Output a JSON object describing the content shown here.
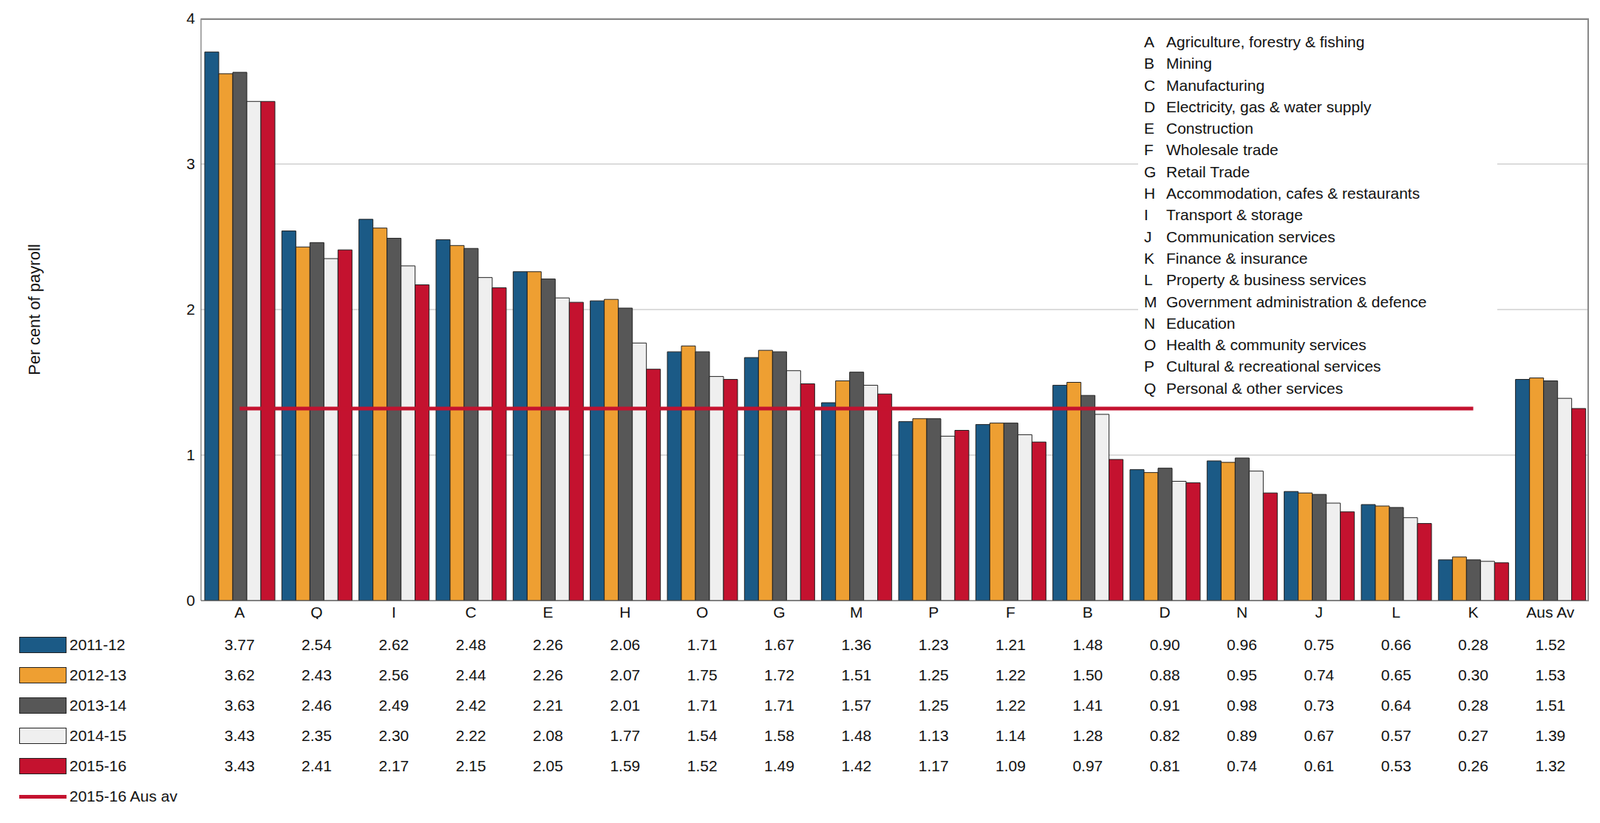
{
  "chart_data": {
    "type": "bar",
    "y_label": "Per cent of payroll",
    "categories": [
      "A",
      "Q",
      "I",
      "C",
      "E",
      "H",
      "O",
      "G",
      "M",
      "P",
      "F",
      "B",
      "D",
      "N",
      "J",
      "L",
      "K",
      "Aus Av"
    ],
    "series": [
      {
        "name": "2011-12",
        "color": "#1b5a86",
        "values": [
          3.77,
          2.54,
          2.62,
          2.48,
          2.26,
          2.06,
          1.71,
          1.67,
          1.36,
          1.23,
          1.21,
          1.48,
          0.9,
          0.96,
          0.75,
          0.66,
          0.28,
          1.52
        ],
        "value_labels": [
          "3.77",
          "2.54",
          "2.62",
          "2.48",
          "2.26",
          "2.06",
          "1.71",
          "1.67",
          "1.36",
          "1.23",
          "1.21",
          "1.48",
          "0.90",
          "0.96",
          "0.75",
          "0.66",
          "0.28",
          "1.52"
        ]
      },
      {
        "name": "2012-13",
        "color": "#ee9f32",
        "values": [
          3.62,
          2.43,
          2.56,
          2.44,
          2.26,
          2.07,
          1.75,
          1.72,
          1.51,
          1.25,
          1.22,
          1.5,
          0.88,
          0.95,
          0.74,
          0.65,
          0.3,
          1.53
        ],
        "value_labels": [
          "3.62",
          "2.43",
          "2.56",
          "2.44",
          "2.26",
          "2.07",
          "1.75",
          "1.72",
          "1.51",
          "1.25",
          "1.22",
          "1.50",
          "0.88",
          "0.95",
          "0.74",
          "0.65",
          "0.30",
          "1.53"
        ]
      },
      {
        "name": "2013-14",
        "color": "#575757",
        "values": [
          3.63,
          2.46,
          2.49,
          2.42,
          2.21,
          2.01,
          1.71,
          1.71,
          1.57,
          1.25,
          1.22,
          1.41,
          0.91,
          0.98,
          0.73,
          0.64,
          0.28,
          1.51
        ],
        "value_labels": [
          "3.63",
          "2.46",
          "2.49",
          "2.42",
          "2.21",
          "2.01",
          "1.71",
          "1.71",
          "1.57",
          "1.25",
          "1.22",
          "1.41",
          "0.91",
          "0.98",
          "0.73",
          "0.64",
          "0.28",
          "1.51"
        ]
      },
      {
        "name": "2014-15",
        "color": "#efefef",
        "values": [
          3.43,
          2.35,
          2.3,
          2.22,
          2.08,
          1.77,
          1.54,
          1.58,
          1.48,
          1.13,
          1.14,
          1.28,
          0.82,
          0.89,
          0.67,
          0.57,
          0.27,
          1.39
        ],
        "value_labels": [
          "3.43",
          "2.35",
          "2.30",
          "2.22",
          "2.08",
          "1.77",
          "1.54",
          "1.58",
          "1.48",
          "1.13",
          "1.14",
          "1.28",
          "0.82",
          "0.89",
          "0.67",
          "0.57",
          "0.27",
          "1.39"
        ]
      },
      {
        "name": "2015-16",
        "color": "#c4122f",
        "values": [
          3.43,
          2.41,
          2.17,
          2.15,
          2.05,
          1.59,
          1.52,
          1.49,
          1.42,
          1.17,
          1.09,
          0.97,
          0.81,
          0.74,
          0.61,
          0.53,
          0.26,
          1.32
        ],
        "value_labels": [
          "3.43",
          "2.41",
          "2.17",
          "2.15",
          "2.05",
          "1.59",
          "1.52",
          "1.49",
          "1.42",
          "1.17",
          "1.09",
          "0.97",
          "0.81",
          "0.74",
          "0.61",
          "0.53",
          "0.26",
          "1.32"
        ]
      }
    ],
    "reference_line": {
      "value": 1.32,
      "label": "2015-16 Aus av",
      "color": "#c4122f"
    },
    "category_key": [
      {
        "code": "A",
        "name": "Agriculture, forestry & fishing"
      },
      {
        "code": "B",
        "name": "Mining"
      },
      {
        "code": "C",
        "name": "Manufacturing"
      },
      {
        "code": "D",
        "name": "Electricity, gas & water supply"
      },
      {
        "code": "E",
        "name": "Construction"
      },
      {
        "code": "F",
        "name": "Wholesale trade"
      },
      {
        "code": "G",
        "name": "Retail Trade"
      },
      {
        "code": "H",
        "name": "Accommodation, cafes & restaurants"
      },
      {
        "code": "I",
        "name": "Transport & storage"
      },
      {
        "code": "J",
        "name": "Communication services"
      },
      {
        "code": "K",
        "name": "Finance & insurance"
      },
      {
        "code": "L",
        "name": "Property & business services"
      },
      {
        "code": "M",
        "name": "Government administration & defence"
      },
      {
        "code": "N",
        "name": "Education"
      },
      {
        "code": "O",
        "name": "Health & community services"
      },
      {
        "code": "P",
        "name": "Cultural & recreational services"
      },
      {
        "code": "Q",
        "name": "Personal & other services"
      }
    ],
    "ylim": [
      0,
      4
    ],
    "yticks": [
      0,
      1,
      2,
      3,
      4
    ],
    "grid": true
  }
}
